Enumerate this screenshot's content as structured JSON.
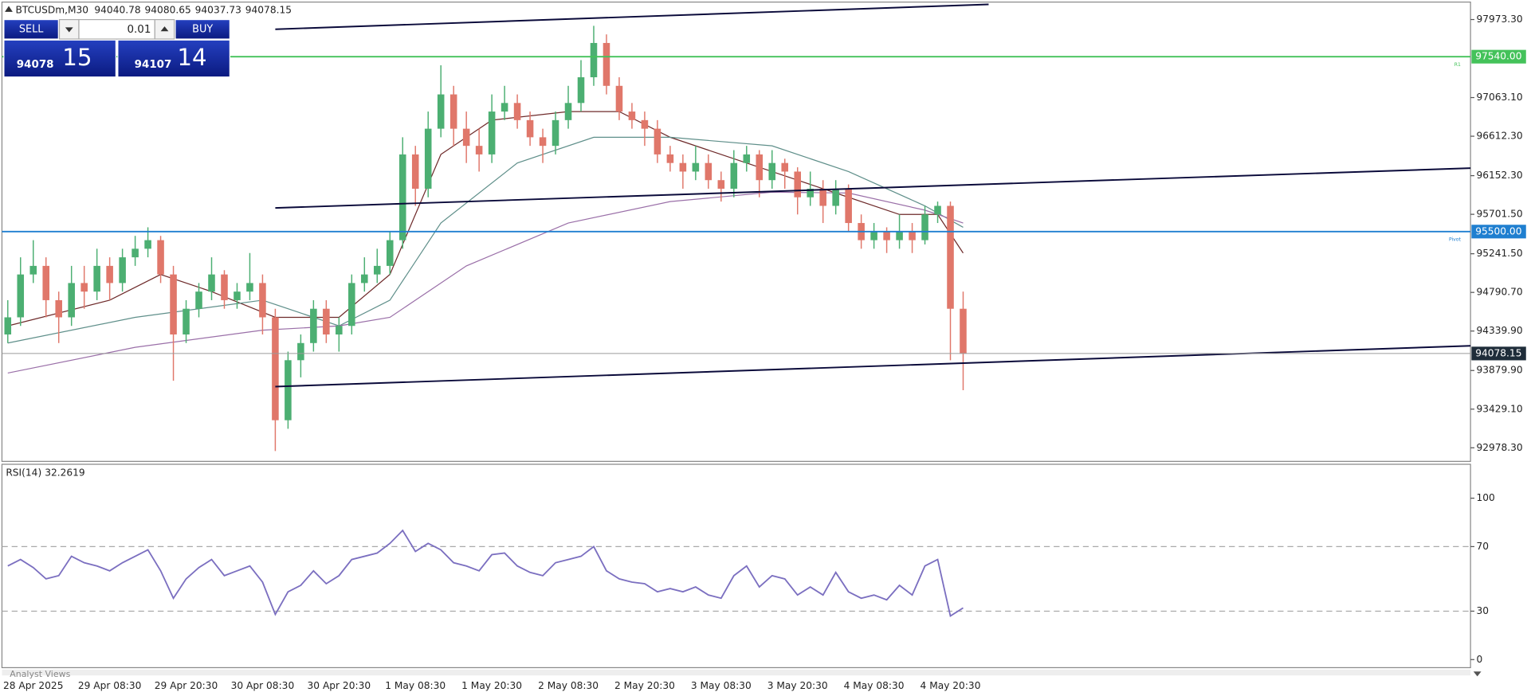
{
  "header": {
    "symbol": "BTCUSDm,M30",
    "ohlc": [
      94040.78,
      94080.65,
      94037.73,
      94078.15
    ]
  },
  "trade_panel": {
    "sell_label": "SELL",
    "buy_label": "BUY",
    "lot": 0.01,
    "sell_main": 94078,
    "sell_big": 15,
    "buy_main": 94107,
    "buy_big": 14
  },
  "footer": {
    "tab": "Analyst Views"
  },
  "chart_data": [
    {
      "type": "candlestick",
      "up_color": "#4caf72",
      "down_color": "#e0776a",
      "categories": [
        null,
        null,
        "28 Apr 2025",
        null,
        null,
        null,
        null,
        null,
        "29 Apr 08:30",
        null,
        null,
        null,
        null,
        null,
        "29 Apr 20:30",
        null,
        null,
        null,
        null,
        null,
        "30 Apr 08:30",
        null,
        null,
        null,
        null,
        null,
        "30 Apr 20:30",
        null,
        null,
        null,
        null,
        null,
        "1 May 08:30",
        null,
        null,
        null,
        null,
        null,
        "1 May 20:30",
        null,
        null,
        null,
        null,
        null,
        "2 May 08:30",
        null,
        null,
        null,
        null,
        null,
        "2 May 20:30",
        null,
        null,
        null,
        null,
        null,
        "3 May 08:30",
        null,
        null,
        null,
        null,
        null,
        "3 May 20:30",
        null,
        null,
        null,
        null,
        null,
        "4 May 08:30",
        null,
        null,
        null,
        null,
        null,
        "4 May 20:30",
        null
      ],
      "candles": [
        [
          94300,
          94700,
          94200,
          94500
        ],
        [
          94500,
          95200,
          94400,
          95000
        ],
        [
          95000,
          95400,
          94900,
          95100
        ],
        [
          95100,
          95200,
          94500,
          94700
        ],
        [
          94700,
          94800,
          94200,
          94500
        ],
        [
          94500,
          95100,
          94400,
          94900
        ],
        [
          94900,
          95100,
          94600,
          94800
        ],
        [
          94800,
          95300,
          94700,
          95100
        ],
        [
          95100,
          95200,
          94700,
          94900
        ],
        [
          94900,
          95300,
          94800,
          95200
        ],
        [
          95200,
          95450,
          95100,
          95300
        ],
        [
          95300,
          95550,
          95200,
          95400
        ],
        [
          95400,
          95450,
          94900,
          95000
        ],
        [
          95000,
          95100,
          93760,
          94300
        ],
        [
          94300,
          94700,
          94200,
          94600
        ],
        [
          94600,
          94900,
          94500,
          94800
        ],
        [
          94800,
          95200,
          94700,
          95000
        ],
        [
          95000,
          95050,
          94600,
          94700
        ],
        [
          94700,
          94900,
          94600,
          94800
        ],
        [
          94800,
          95250,
          94700,
          94900
        ],
        [
          94900,
          95000,
          94300,
          94500
        ],
        [
          94500,
          94600,
          92940,
          93300
        ],
        [
          93300,
          94100,
          93200,
          94000
        ],
        [
          94000,
          94300,
          93800,
          94200
        ],
        [
          94200,
          94700,
          94100,
          94600
        ],
        [
          94600,
          94700,
          94200,
          94300
        ],
        [
          94300,
          94500,
          94100,
          94400
        ],
        [
          94400,
          95000,
          94300,
          94900
        ],
        [
          94900,
          95200,
          94800,
          95000
        ],
        [
          95000,
          95300,
          94900,
          95100
        ],
        [
          95100,
          95500,
          95000,
          95400
        ],
        [
          95400,
          96600,
          95300,
          96400
        ],
        [
          96400,
          96500,
          95800,
          96000
        ],
        [
          96000,
          96900,
          95900,
          96700
        ],
        [
          96700,
          97440,
          96600,
          97100
        ],
        [
          97100,
          97200,
          96500,
          96700
        ],
        [
          96700,
          96900,
          96300,
          96500
        ],
        [
          96500,
          96700,
          96200,
          96400
        ],
        [
          96400,
          97100,
          96300,
          96900
        ],
        [
          96900,
          97200,
          96800,
          97000
        ],
        [
          97000,
          97100,
          96700,
          96800
        ],
        [
          96800,
          96900,
          96500,
          96600
        ],
        [
          96600,
          96700,
          96300,
          96500
        ],
        [
          96500,
          96900,
          96400,
          96800
        ],
        [
          96800,
          97200,
          96700,
          97000
        ],
        [
          97000,
          97500,
          96900,
          97300
        ],
        [
          97300,
          97900,
          97200,
          97700
        ],
        [
          97700,
          97800,
          97100,
          97200
        ],
        [
          97200,
          97300,
          96800,
          96900
        ],
        [
          96900,
          97000,
          96700,
          96800
        ],
        [
          96800,
          96900,
          96500,
          96700
        ],
        [
          96700,
          96800,
          96300,
          96400
        ],
        [
          96400,
          96500,
          96200,
          96300
        ],
        [
          96300,
          96400,
          96000,
          96200
        ],
        [
          96200,
          96500,
          96100,
          96300
        ],
        [
          96300,
          96400,
          96000,
          96100
        ],
        [
          96100,
          96200,
          95850,
          96000
        ],
        [
          96000,
          96450,
          95900,
          96300
        ],
        [
          96300,
          96500,
          96200,
          96400
        ],
        [
          96400,
          96450,
          95900,
          96100
        ],
        [
          96100,
          96450,
          96000,
          96300
        ],
        [
          96300,
          96350,
          96000,
          96200
        ],
        [
          96200,
          96250,
          95700,
          95900
        ],
        [
          95900,
          96200,
          95800,
          96000
        ],
        [
          96000,
          96100,
          95600,
          95800
        ],
        [
          95800,
          96100,
          95700,
          96000
        ],
        [
          96000,
          96050,
          95500,
          95600
        ],
        [
          95600,
          95700,
          95300,
          95400
        ],
        [
          95400,
          95600,
          95300,
          95500
        ],
        [
          95500,
          95550,
          95250,
          95400
        ],
        [
          95400,
          95700,
          95300,
          95500
        ],
        [
          95500,
          95600,
          95250,
          95400
        ],
        [
          95400,
          95800,
          95350,
          95700
        ],
        [
          95700,
          95850,
          95600,
          95800
        ],
        [
          95800,
          95850,
          94000,
          94600
        ],
        [
          94600,
          94800,
          93650,
          94078.15
        ]
      ],
      "ylim": [
        92820,
        98177
      ],
      "yticks": [
        {
          "value": 97973.3,
          "label": "97973.30"
        },
        {
          "value": 97063.1,
          "label": "97063.10"
        },
        {
          "value": 96612.3,
          "label": "96612.30"
        },
        {
          "value": 96152.3,
          "label": "96152.30"
        },
        {
          "value": 95701.5,
          "label": "95701.50"
        },
        {
          "value": 95241.5,
          "label": "95241.50"
        },
        {
          "value": 94790.7,
          "label": "94790.70"
        },
        {
          "value": 94339.9,
          "label": "94339.90"
        },
        {
          "value": 93879.9,
          "label": "93879.90"
        },
        {
          "value": 93429.1,
          "label": "93429.10"
        },
        {
          "value": 92978.3,
          "label": "92978.30"
        }
      ],
      "levels": [
        {
          "value": 97540,
          "label": "97540.00",
          "color": "#44c25a",
          "tag": "R1"
        },
        {
          "value": 95500,
          "label": "95500.00",
          "color": "#1f7fd0",
          "tag": "Pivot"
        },
        {
          "value": 94078.15,
          "color": "#9a9a9a",
          "box_color": "#1f2d3a"
        }
      ],
      "overlays": [
        {
          "color": "#6e2a2a",
          "x": [
            0,
            8,
            12,
            16,
            21,
            26,
            30,
            34,
            38,
            44,
            48,
            52,
            58,
            62,
            66,
            70,
            73,
            75
          ],
          "values": [
            94400,
            94700,
            95000,
            94800,
            94500,
            94500,
            95000,
            96400,
            96800,
            96900,
            96900,
            96600,
            96300,
            96100,
            95900,
            95700,
            95700,
            95250
          ]
        },
        {
          "color": "#5f8f8a",
          "x": [
            0,
            10,
            20,
            26,
            30,
            34,
            40,
            46,
            52,
            60,
            66,
            72,
            75
          ],
          "values": [
            94200,
            94500,
            94700,
            94400,
            94700,
            95600,
            96300,
            96600,
            96600,
            96500,
            96200,
            95800,
            95550
          ]
        },
        {
          "color": "#9a6fa8",
          "x": [
            0,
            10,
            20,
            26,
            30,
            36,
            44,
            52,
            60,
            66,
            72,
            75
          ],
          "values": [
            93850,
            94150,
            94350,
            94400,
            94500,
            95100,
            95600,
            95850,
            95960,
            95950,
            95750,
            95600
          ]
        }
      ],
      "trendlines": [
        {
          "color": "#0a0a3a",
          "x": [
            21,
            77
          ],
          "values": [
            97860,
            98150
          ]
        },
        {
          "color": "#0a0a3a",
          "x": [
            21,
            115
          ],
          "values": [
            95776,
            96240
          ]
        },
        {
          "color": "#0a0a3a",
          "x": [
            21,
            115
          ],
          "values": [
            93692,
            94168
          ]
        }
      ]
    },
    {
      "type": "line",
      "title": "RSI(14)",
      "value": 32.2619,
      "color": "#7b6fc0",
      "values": [
        58,
        62,
        57,
        50,
        52,
        64,
        60,
        58,
        55,
        60,
        64,
        68,
        55,
        38,
        50,
        57,
        62,
        52,
        55,
        58,
        48,
        28,
        42,
        46,
        55,
        47,
        52,
        62,
        64,
        66,
        72,
        80,
        67,
        72,
        68,
        60,
        58,
        55,
        65,
        66,
        58,
        54,
        52,
        60,
        62,
        64,
        70,
        55,
        50,
        48,
        47,
        42,
        44,
        42,
        45,
        40,
        38,
        52,
        58,
        45,
        52,
        50,
        40,
        45,
        40,
        54,
        42,
        38,
        40,
        37,
        46,
        40,
        58,
        62,
        27,
        32
      ],
      "ylim": [
        -5,
        121
      ],
      "yticks": [
        100,
        70,
        30,
        0
      ],
      "levels": [
        70,
        30
      ]
    }
  ]
}
